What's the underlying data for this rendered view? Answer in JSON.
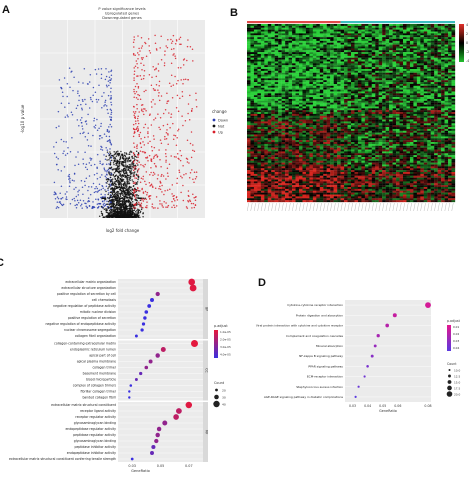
{
  "panels": {
    "A": {
      "letter": "A",
      "title_lines": [
        "P value significance levels",
        "Upregulated genes",
        "Downregulated genes"
      ],
      "xlabel": "log2 fold change",
      "ylabel": "-log10 p value",
      "legend_title": "change",
      "legend_items": [
        {
          "label": "Down",
          "color": "#2d3fb0"
        },
        {
          "label": "Not",
          "color": "#111111"
        },
        {
          "label": "Up",
          "color": "#d81e2a"
        }
      ],
      "chart_data": {
        "type": "scatter",
        "description_free": true,
        "series": [
          {
            "name": "Down",
            "color": "#2d3fb0",
            "count": 420
          },
          {
            "name": "Not",
            "color": "#111111",
            "count": 1600
          },
          {
            "name": "Up",
            "color": "#d81e2a",
            "count": 520
          }
        ],
        "xlim": [
          -6,
          6
        ],
        "ylim": [
          0,
          12
        ]
      }
    },
    "B": {
      "letter": "B",
      "legend_ticks": [
        "4",
        "2",
        "0",
        "-2",
        "-4"
      ],
      "legend_colors": [
        "#e0302a",
        "#7a1a12",
        "#000000",
        "#0a5a10",
        "#22c02e"
      ],
      "chart_data": {
        "type": "heatmap",
        "rows": 95,
        "cols": 60
      }
    },
    "C": {
      "letter": "C",
      "xlabel": "GeneRatio",
      "x_ticks": [
        "0.03",
        "0.05",
        "0.07"
      ],
      "facets": [
        "BP",
        "CC",
        "MF"
      ],
      "legend_title": "p.adjust",
      "legend_ticks": [
        "1.0e-05",
        "2.0e-05",
        "3.0e-05",
        "4.0e-05"
      ],
      "size_title": "Count",
      "size_ticks": [
        "20",
        "30",
        "40"
      ],
      "chart_data": {
        "type": "scatter",
        "xlabel": "GeneRatio",
        "facets": [
          {
            "name": "BP",
            "terms": [
              {
                "term": "extracellular matrix organization",
                "generatio": 0.072,
                "padj": 2e-06,
                "count": 40
              },
              {
                "term": "extracellular structure organization",
                "generatio": 0.073,
                "padj": 2e-06,
                "count": 41
              },
              {
                "term": "positive regulation of secretion by cell",
                "generatio": 0.048,
                "padj": 2e-05,
                "count": 26
              },
              {
                "term": "cell chemotaxis",
                "generatio": 0.044,
                "padj": 4e-05,
                "count": 24
              },
              {
                "term": "negative regulation of peptidase activity",
                "generatio": 0.042,
                "padj": 4e-05,
                "count": 23
              },
              {
                "term": "mitotic nuclear division",
                "generatio": 0.04,
                "padj": 4e-05,
                "count": 22
              },
              {
                "term": "positive regulation of secretion",
                "generatio": 0.039,
                "padj": 4e-05,
                "count": 21
              },
              {
                "term": "negative regulation of endopeptidase activity",
                "generatio": 0.038,
                "padj": 4e-05,
                "count": 20
              },
              {
                "term": "nuclear chromosome segregation",
                "generatio": 0.037,
                "padj": 4e-05,
                "count": 20
              },
              {
                "term": "collagen fibril organization",
                "generatio": 0.033,
                "padj": 4e-05,
                "count": 18
              }
            ]
          },
          {
            "name": "CC",
            "terms": [
              {
                "term": "collagen-containing extracellular matrix",
                "generatio": 0.074,
                "padj": 1e-06,
                "count": 42
              },
              {
                "term": "endoplasmic reticulum lumen",
                "generatio": 0.052,
                "padj": 1e-05,
                "count": 30
              },
              {
                "term": "apical part of cell",
                "generatio": 0.048,
                "padj": 2e-05,
                "count": 27
              },
              {
                "term": "apical plasma membrane",
                "generatio": 0.043,
                "padj": 2e-05,
                "count": 24
              },
              {
                "term": "collagen trimer",
                "generatio": 0.04,
                "padj": 2e-05,
                "count": 22
              },
              {
                "term": "basement membrane",
                "generatio": 0.036,
                "padj": 3e-05,
                "count": 20
              },
              {
                "term": "blood microparticle",
                "generatio": 0.033,
                "padj": 3e-05,
                "count": 18
              },
              {
                "term": "complex of collagen trimers",
                "generatio": 0.029,
                "padj": 4e-05,
                "count": 16
              },
              {
                "term": "fibrillar collagen trimer",
                "generatio": 0.028,
                "padj": 4e-05,
                "count": 15
              },
              {
                "term": "banded collagen fibril",
                "generatio": 0.028,
                "padj": 4e-05,
                "count": 15
              }
            ]
          },
          {
            "name": "MF",
            "terms": [
              {
                "term": "extracellular matrix structural constituent",
                "generatio": 0.07,
                "padj": 2e-06,
                "count": 39
              },
              {
                "term": "receptor ligand activity",
                "generatio": 0.063,
                "padj": 1e-05,
                "count": 35
              },
              {
                "term": "receptor regulator activity",
                "generatio": 0.061,
                "padj": 1e-05,
                "count": 34
              },
              {
                "term": "glycosaminoglycan binding",
                "generatio": 0.053,
                "padj": 2e-05,
                "count": 30
              },
              {
                "term": "endopeptidase regulator activity",
                "generatio": 0.049,
                "padj": 2e-05,
                "count": 27
              },
              {
                "term": "peptidase regulator activity",
                "generatio": 0.048,
                "padj": 2e-05,
                "count": 27
              },
              {
                "term": "glycosaminoglycan binding",
                "generatio": 0.047,
                "padj": 2e-05,
                "count": 26
              },
              {
                "term": "peptidase inhibitor activity",
                "generatio": 0.045,
                "padj": 3e-05,
                "count": 25
              },
              {
                "term": "endopeptidase inhibitor activity",
                "generatio": 0.044,
                "padj": 3e-05,
                "count": 24
              },
              {
                "term": "extracellular matrix structural constituent conferring tensile strength",
                "generatio": 0.03,
                "padj": 4e-05,
                "count": 17
              }
            ]
          }
        ]
      }
    },
    "D": {
      "letter": "D",
      "xlabel": "GeneRatio",
      "x_ticks": [
        "0.03",
        "0.04",
        "0.05",
        "0.06",
        "0.08"
      ],
      "legend_title": "p.adjust",
      "legend_ticks": [
        "0.01",
        "0.02",
        "0.03",
        "0.04"
      ],
      "size_title": "Count",
      "size_ticks": [
        "10.0",
        "12.5",
        "15.0",
        "17.5",
        "20.0"
      ],
      "chart_data": {
        "type": "scatter",
        "xlabel": "GeneRatio",
        "xlim": [
          0.025,
          0.082
        ],
        "terms": [
          {
            "term": "Cytokine-cytokine receptor interaction",
            "generatio": 0.08,
            "padj": 0.005,
            "count": 20
          },
          {
            "term": "Protein digestion and absorption",
            "generatio": 0.058,
            "padj": 0.01,
            "count": 15
          },
          {
            "term": "Viral protein interaction with cytokine and cytokine receptor",
            "generatio": 0.053,
            "padj": 0.015,
            "count": 14
          },
          {
            "term": "Complement and coagulation cascades",
            "generatio": 0.047,
            "padj": 0.02,
            "count": 13
          },
          {
            "term": "Mineral absorption",
            "generatio": 0.045,
            "padj": 0.025,
            "count": 12
          },
          {
            "term": "NF-kappa B signaling pathway",
            "generatio": 0.043,
            "padj": 0.03,
            "count": 12
          },
          {
            "term": "PPAR signaling pathway",
            "generatio": 0.04,
            "padj": 0.035,
            "count": 11
          },
          {
            "term": "ECM-receptor interaction",
            "generatio": 0.038,
            "padj": 0.038,
            "count": 10
          },
          {
            "term": "Staphylococcus aureus infection",
            "generatio": 0.034,
            "padj": 0.04,
            "count": 10
          },
          {
            "term": "AGE-RAGE signaling pathway in diabetic complications",
            "generatio": 0.032,
            "padj": 0.045,
            "count": 10
          }
        ]
      }
    }
  }
}
